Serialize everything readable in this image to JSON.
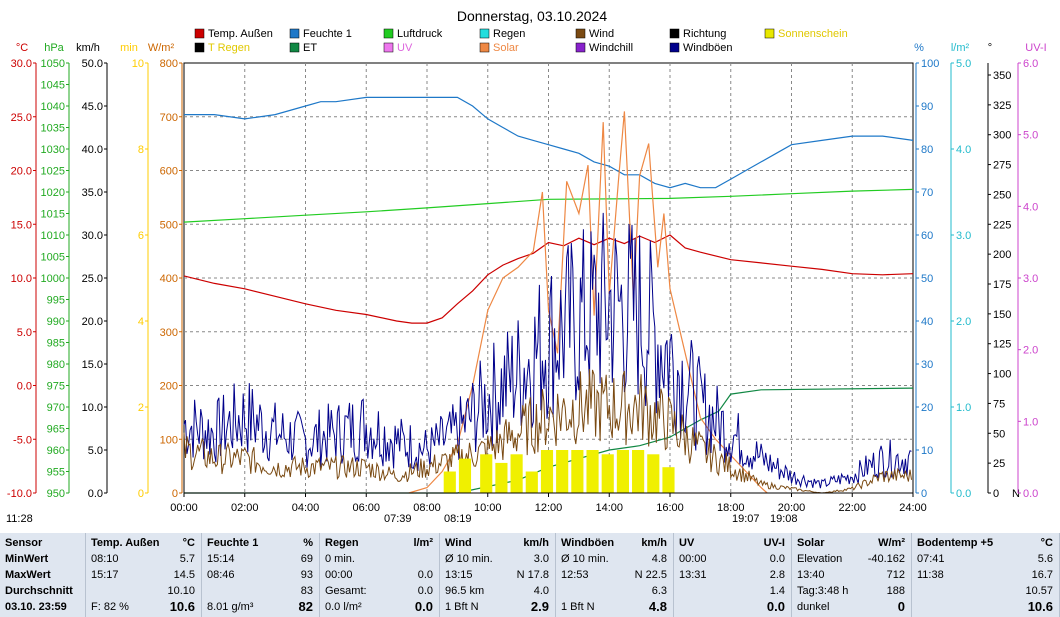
{
  "title": "Donnerstag, 03.10.2024",
  "legend": [
    {
      "label": "Temp. Außen",
      "color": "#cc0000"
    },
    {
      "label": "Feuchte 1",
      "color": "#1e78c8"
    },
    {
      "label": "Luftdruck",
      "color": "#22cc22"
    },
    {
      "label": "Regen",
      "color": "#22dddd"
    },
    {
      "label": "Wind",
      "color": "#7a4a12"
    },
    {
      "label": "Richtung",
      "color": "#000000"
    },
    {
      "label": "Sonnenschein",
      "color": "#e8e800"
    },
    {
      "label": "T Regen",
      "color": "#000000"
    },
    {
      "label": "ET",
      "color": "#118844"
    },
    {
      "label": "UV",
      "color": "#ee77ee"
    },
    {
      "label": "Solar",
      "color": "#ee8844"
    },
    {
      "label": "Windchill",
      "color": "#8822cc"
    },
    {
      "label": "Windböen",
      "color": "#00008b"
    }
  ],
  "axes_left": [
    {
      "unit": "°C",
      "color": "#cc0000",
      "ticks": [
        "30.0",
        "25.0",
        "20.0",
        "15.0",
        "10.0",
        "5.0",
        "0.0",
        "-5.0",
        "-10.0"
      ]
    },
    {
      "unit": "hPa",
      "color": "#22aa22",
      "ticks": [
        "1050",
        "1045",
        "1040",
        "1035",
        "1030",
        "1025",
        "1020",
        "1015",
        "1010",
        "1005",
        "1000",
        "995",
        "990",
        "985",
        "980",
        "975",
        "970",
        "965",
        "960",
        "955",
        "950"
      ]
    },
    {
      "unit": "km/h",
      "color": "#000000",
      "ticks": [
        "50.0",
        "45.0",
        "40.0",
        "35.0",
        "30.0",
        "25.0",
        "20.0",
        "15.0",
        "10.0",
        "5.0",
        "0.0"
      ]
    },
    {
      "unit": "min",
      "color": "#ffcc00",
      "ticks": [
        "10",
        "8",
        "6",
        "4",
        "2",
        "0"
      ]
    },
    {
      "unit": "W/m²",
      "color": "#cc6600",
      "ticks": [
        "800",
        "700",
        "600",
        "500",
        "400",
        "300",
        "200",
        "100",
        "0"
      ]
    }
  ],
  "axes_right": [
    {
      "unit": "%",
      "color": "#1e78c8",
      "ticks": [
        "100",
        "90",
        "80",
        "70",
        "60",
        "50",
        "40",
        "30",
        "20",
        "10",
        "0"
      ]
    },
    {
      "unit": "l/m²",
      "color": "#22bbcc",
      "ticks": [
        "5.0",
        "4.0",
        "3.0",
        "2.0",
        "1.0",
        "0.0"
      ]
    },
    {
      "unit": "°",
      "color": "#000000",
      "ticks": [
        "350",
        "325",
        "300",
        "275",
        "250",
        "225",
        "200",
        "175",
        "150",
        "125",
        "100",
        "75",
        "50",
        "25",
        "0"
      ],
      "extra": "N"
    },
    {
      "unit": "UV-I",
      "color": "#cc44cc",
      "ticks": [
        "6.0",
        "5.0",
        "4.0",
        "3.0",
        "2.0",
        "1.0",
        "0.0"
      ]
    }
  ],
  "x_ticks": [
    "00:00",
    "02:00",
    "04:00",
    "06:00",
    "08:00",
    "10:00",
    "12:00",
    "14:00",
    "16:00",
    "18:00",
    "20:00",
    "22:00",
    "24:00"
  ],
  "markers": {
    "top_left": "11:28",
    "sunrise": "07:39",
    "sunrise2": "08:19",
    "sunset": "19:07",
    "sunset2": "19:08"
  },
  "chart_data": {
    "type": "line",
    "x_unit": "hour",
    "xlim": [
      0,
      24
    ],
    "series": [
      {
        "name": "Temp. Außen",
        "axis": "°C",
        "ylim": [
          -10,
          30
        ],
        "x": [
          0,
          1,
          2,
          3,
          4,
          5,
          6,
          7,
          7.5,
          8,
          8.5,
          9,
          9.5,
          10,
          10.5,
          11,
          11.5,
          12,
          12.5,
          13,
          13.5,
          14,
          14.5,
          15,
          15.5,
          16,
          16.5,
          17,
          18,
          19,
          20,
          21,
          22,
          23,
          24
        ],
        "y": [
          10.2,
          9.5,
          9.0,
          8.3,
          7.6,
          7.0,
          6.6,
          6.0,
          5.8,
          5.8,
          6.3,
          7.6,
          8.8,
          10.3,
          11.2,
          11.8,
          12.3,
          13.3,
          13.0,
          13.7,
          13.1,
          13.7,
          13.2,
          13.9,
          13.3,
          14.0,
          12.8,
          12.4,
          11.7,
          11.4,
          11.1,
          10.8,
          10.4,
          10.3,
          10.4
        ]
      },
      {
        "name": "Feuchte 1",
        "axis": "%",
        "ylim": [
          0,
          100
        ],
        "x": [
          0,
          1,
          2,
          3,
          4,
          4.5,
          5,
          6,
          7,
          8,
          9,
          9.5,
          10,
          10.5,
          11,
          11.5,
          12,
          12.5,
          13,
          13.5,
          14,
          14.5,
          15,
          15.5,
          16,
          16.5,
          17,
          17.5,
          18,
          18.5,
          19,
          19.5,
          20,
          21,
          22,
          23,
          24
        ],
        "y": [
          88,
          88,
          87,
          88,
          90,
          91,
          91,
          92,
          92,
          92,
          92,
          90,
          87,
          85,
          83,
          82,
          81,
          80,
          79,
          77,
          76,
          74,
          74,
          72,
          71,
          72,
          71,
          71,
          73,
          75,
          77,
          79,
          81,
          82,
          83,
          83,
          82
        ]
      },
      {
        "name": "Luftdruck",
        "axis": "hPa",
        "ylim": [
          950,
          1050
        ],
        "x": [
          0,
          2,
          4,
          6,
          8,
          10,
          12,
          14,
          16,
          18,
          20,
          22,
          24
        ],
        "y": [
          1013,
          1013.8,
          1014.6,
          1015.4,
          1016.3,
          1017.3,
          1018.3,
          1018.4,
          1018.5,
          1019,
          1019.6,
          1020.2,
          1020.6
        ]
      },
      {
        "name": "ET",
        "axis": "l/m²",
        "ylim": [
          0,
          5
        ],
        "x": [
          0,
          9,
          11,
          12,
          13,
          14,
          15,
          16,
          17,
          17.6,
          18,
          19,
          24
        ],
        "y": [
          0,
          0,
          0.15,
          0.3,
          0.4,
          0.5,
          0.55,
          0.65,
          0.85,
          0.95,
          1.15,
          1.2,
          1.22
        ]
      },
      {
        "name": "Solar",
        "axis": "W/m²",
        "ylim": [
          0,
          800
        ],
        "x": [
          7.4,
          8,
          8.5,
          9,
          9.5,
          10,
          10.5,
          11,
          11.5,
          11.8,
          12,
          12.3,
          12.6,
          13,
          13.3,
          13.5,
          13.8,
          14,
          14.3,
          14.5,
          14.8,
          15,
          15.3,
          15.6,
          15.8,
          16,
          16.5,
          17,
          17.5,
          18,
          18.5,
          19,
          19.2
        ],
        "y": [
          0,
          10,
          40,
          90,
          200,
          340,
          400,
          420,
          450,
          560,
          340,
          260,
          580,
          520,
          610,
          330,
          690,
          370,
          580,
          710,
          360,
          590,
          650,
          420,
          520,
          380,
          260,
          140,
          100,
          70,
          40,
          10,
          0
        ]
      },
      {
        "name": "Windböen",
        "axis": "km/h",
        "ylim": [
          0,
          50
        ],
        "x": [
          0,
          1,
          2,
          3,
          4,
          5,
          6,
          7,
          8,
          9,
          10,
          11,
          12,
          13,
          14,
          15,
          16,
          17,
          18,
          19,
          20,
          21,
          22,
          23,
          24
        ],
        "y": [
          8,
          7,
          9,
          7,
          6,
          7,
          8,
          6,
          5,
          7,
          11,
          14,
          18,
          20,
          22,
          21,
          16,
          10,
          7,
          4,
          2,
          1,
          2,
          4,
          4
        ]
      },
      {
        "name": "Wind",
        "axis": "km/h",
        "ylim": [
          0,
          50
        ],
        "x": [
          0,
          1,
          2,
          3,
          4,
          5,
          6,
          7,
          8,
          9,
          10,
          11,
          12,
          13,
          14,
          15,
          16,
          17,
          18,
          19,
          20,
          21,
          22,
          23,
          24
        ],
        "y": [
          5,
          4,
          4,
          3,
          3,
          3,
          3,
          2,
          3,
          4,
          5,
          7,
          9,
          10,
          10,
          10,
          8,
          5,
          3,
          1,
          0.5,
          0,
          0.5,
          2,
          2
        ]
      },
      {
        "name": "Sonnenschein",
        "axis": "min",
        "ylim": [
          0,
          10
        ],
        "x": [
          8.8,
          9.3,
          10,
          10.5,
          11,
          11.5,
          12,
          12.5,
          13,
          13.5,
          14,
          14.5,
          15,
          15.5,
          16
        ],
        "y": [
          0.5,
          0.8,
          0.9,
          0.7,
          0.9,
          0.5,
          1.0,
          1.0,
          1.0,
          1.0,
          0.9,
          1.0,
          1.0,
          0.9,
          0.6
        ]
      }
    ]
  },
  "stats": {
    "cols": [
      {
        "rows": [
          [
            "Sensor"
          ],
          [
            "MinWert"
          ],
          [
            "MaxWert"
          ],
          [
            "Durchschnitt"
          ],
          [
            "03.10.  23:59"
          ]
        ]
      },
      {
        "head": [
          "Temp. Außen",
          "°C"
        ],
        "rows": [
          [
            "08:10",
            "5.7"
          ],
          [
            "15:17",
            "14.5"
          ],
          [
            "",
            "10.10"
          ],
          [
            "F: 82 %",
            "10.6"
          ]
        ]
      },
      {
        "head": [
          "Feuchte 1",
          "%"
        ],
        "rows": [
          [
            "15:14",
            "69"
          ],
          [
            "08:46",
            "93"
          ],
          [
            "",
            "83"
          ],
          [
            "8.01 g/m³",
            "82"
          ]
        ]
      },
      {
        "head": [
          "Regen",
          "l/m²"
        ],
        "rows": [
          [
            "0 min.",
            ""
          ],
          [
            "00:00",
            "0.0"
          ],
          [
            "Gesamt:",
            "0.0"
          ],
          [
            "0.0 l/m²",
            "0.0"
          ]
        ]
      },
      {
        "head": [
          "Wind",
          "km/h"
        ],
        "rows": [
          [
            "Ø 10 min.",
            "3.0"
          ],
          [
            "13:15",
            "N 17.8"
          ],
          [
            "96.5 km",
            "4.0"
          ],
          [
            "1 Bft N",
            "2.9"
          ]
        ]
      },
      {
        "head": [
          "Windböen",
          "km/h"
        ],
        "rows": [
          [
            "Ø 10 min.",
            "4.8"
          ],
          [
            "12:53",
            "N 22.5"
          ],
          [
            "",
            "6.3"
          ],
          [
            "1 Bft N",
            "4.8"
          ]
        ]
      },
      {
        "head": [
          "UV",
          "UV-I"
        ],
        "rows": [
          [
            "00:00",
            "0.0"
          ],
          [
            "13:31",
            "2.8"
          ],
          [
            "",
            "1.4"
          ],
          [
            "",
            "0.0"
          ]
        ]
      },
      {
        "head": [
          "Solar",
          "W/m²"
        ],
        "rows": [
          [
            "Elevation",
            "-40.162"
          ],
          [
            "13:40",
            "712"
          ],
          [
            "Tag:3:48 h",
            "188"
          ],
          [
            "dunkel",
            "0"
          ]
        ]
      },
      {
        "head": [
          "Bodentemp +5",
          "°C"
        ],
        "rows": [
          [
            "07:41",
            "5.6"
          ],
          [
            "11:38",
            "16.7"
          ],
          [
            "",
            "10.57"
          ],
          [
            "",
            "10.6"
          ]
        ]
      }
    ]
  }
}
